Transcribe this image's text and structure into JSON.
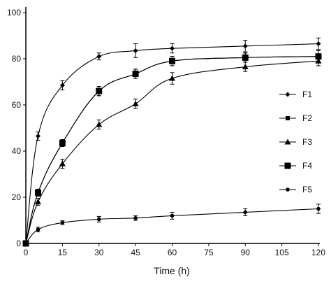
{
  "chart_data": {
    "type": "line",
    "title": "",
    "xlabel": "Time (h)",
    "ylabel": "",
    "xlim": [
      0,
      120
    ],
    "ylim": [
      0,
      100
    ],
    "x_ticks": [
      0,
      15,
      30,
      45,
      60,
      75,
      90,
      105,
      120
    ],
    "y_ticks": [
      0,
      20,
      40,
      60,
      80,
      100
    ],
    "grid": false,
    "legend_position": "right",
    "x": [
      0,
      5,
      15,
      30,
      45,
      60,
      90,
      120
    ],
    "series": [
      {
        "name": "F1",
        "marker": "diamond",
        "values": [
          0,
          46.5,
          68.5,
          81.0,
          83.5,
          84.5,
          85.5,
          86.5
        ],
        "errors": [
          0,
          1.8,
          2.0,
          1.5,
          3.0,
          2.0,
          2.5,
          2.5
        ]
      },
      {
        "name": "F2",
        "marker": "square",
        "values": [
          0,
          22.0,
          43.5,
          66.0,
          73.5,
          79.0,
          80.5,
          81.0
        ],
        "errors": [
          0,
          1.5,
          1.5,
          2.0,
          2.0,
          2.0,
          2.0,
          2.5
        ]
      },
      {
        "name": "F3",
        "marker": "triangle",
        "values": [
          0,
          18.0,
          34.5,
          51.5,
          60.5,
          71.5,
          76.5,
          79.0
        ],
        "errors": [
          0,
          1.5,
          2.0,
          2.0,
          2.0,
          2.5,
          2.0,
          2.0
        ]
      },
      {
        "name": "F4",
        "marker": "big-square",
        "values": [
          0,
          22.0,
          43.5,
          66.0,
          73.5,
          79.0,
          80.5,
          81.0
        ],
        "errors": [
          0,
          1.5,
          1.5,
          2.0,
          2.0,
          2.0,
          2.0,
          2.5
        ]
      },
      {
        "name": "F5",
        "marker": "circle",
        "values": [
          0,
          6.0,
          9.0,
          10.5,
          11.0,
          12.0,
          13.5,
          15.0
        ],
        "errors": [
          0,
          1.0,
          0.8,
          1.2,
          1.0,
          1.5,
          1.5,
          2.0
        ]
      }
    ],
    "colors": {
      "line": "#000000",
      "background": "#ffffff"
    }
  }
}
